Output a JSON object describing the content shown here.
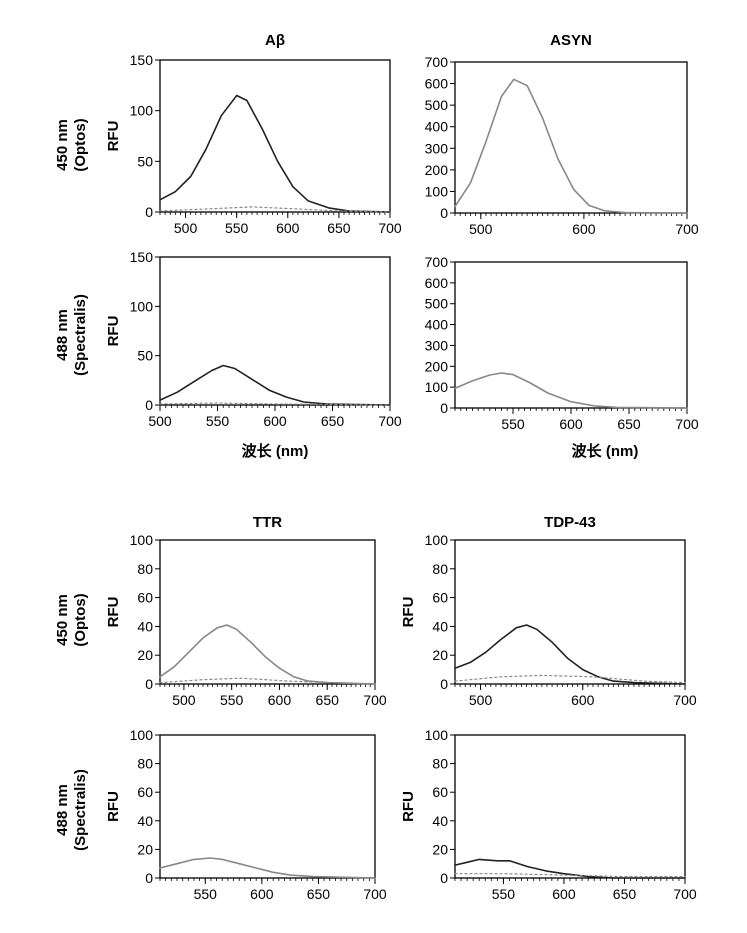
{
  "figure": {
    "row_labels": [
      {
        "line1": "450 nm",
        "line2": "(Optos)"
      },
      {
        "line1": "488 nm",
        "line2": "(Spectralis)"
      },
      {
        "line1": "450 nm",
        "line2": "(Optos)"
      },
      {
        "line1": "488 nm",
        "line2": "(Spectralis)"
      }
    ],
    "x_axis_title": "波长 (nm)",
    "y_axis_title": "RFU"
  },
  "chart_data": [
    {
      "type": "line",
      "title": "Aβ",
      "ylabel": "RFU",
      "xlabel": "",
      "xlim": [
        475,
        700
      ],
      "ylim": [
        0,
        150
      ],
      "xticks": [
        500,
        550,
        600,
        650,
        700
      ],
      "yticks": [
        0,
        50,
        100,
        150
      ],
      "series": [
        {
          "style": "solid",
          "color": "#222222",
          "points": [
            [
              475,
              12
            ],
            [
              490,
              20
            ],
            [
              505,
              35
            ],
            [
              520,
              62
            ],
            [
              535,
              95
            ],
            [
              550,
              115
            ],
            [
              560,
              110
            ],
            [
              575,
              82
            ],
            [
              590,
              50
            ],
            [
              605,
              25
            ],
            [
              620,
              11
            ],
            [
              640,
              4
            ],
            [
              660,
              1
            ],
            [
              700,
              0
            ]
          ]
        },
        {
          "style": "dotted",
          "color": "#888888",
          "points": [
            [
              475,
              1
            ],
            [
              520,
              3
            ],
            [
              565,
              5
            ],
            [
              610,
              3
            ],
            [
              650,
              1
            ],
            [
              700,
              0
            ]
          ]
        }
      ]
    },
    {
      "type": "line",
      "title": "ASYN",
      "ylabel": "",
      "xlabel": "",
      "xlim": [
        475,
        700
      ],
      "ylim": [
        0,
        700
      ],
      "xticks": [
        500,
        600,
        700
      ],
      "yticks": [
        0,
        100,
        200,
        300,
        400,
        500,
        600,
        700
      ],
      "series": [
        {
          "style": "solid",
          "color": "#888888",
          "points": [
            [
              475,
              30
            ],
            [
              490,
              140
            ],
            [
              505,
              330
            ],
            [
              520,
              540
            ],
            [
              532,
              620
            ],
            [
              545,
              590
            ],
            [
              560,
              440
            ],
            [
              575,
              250
            ],
            [
              590,
              110
            ],
            [
              605,
              35
            ],
            [
              620,
              10
            ],
            [
              640,
              2
            ],
            [
              700,
              0
            ]
          ]
        }
      ]
    },
    {
      "type": "line",
      "title": "",
      "ylabel": "RFU",
      "xlabel": "",
      "xlim": [
        500,
        700
      ],
      "ylim": [
        0,
        150
      ],
      "xticks": [
        500,
        550,
        600,
        650,
        700
      ],
      "yticks": [
        0,
        50,
        100,
        150
      ],
      "series": [
        {
          "style": "solid",
          "color": "#222222",
          "points": [
            [
              500,
              5
            ],
            [
              515,
              13
            ],
            [
              530,
              24
            ],
            [
              545,
              35
            ],
            [
              555,
              40
            ],
            [
              565,
              37
            ],
            [
              580,
              26
            ],
            [
              595,
              15
            ],
            [
              610,
              8
            ],
            [
              625,
              3
            ],
            [
              645,
              1
            ],
            [
              700,
              0
            ]
          ]
        },
        {
          "style": "dotted",
          "color": "#888888",
          "points": [
            [
              500,
              1
            ],
            [
              550,
              2
            ],
            [
              600,
              1
            ],
            [
              700,
              0
            ]
          ]
        }
      ]
    },
    {
      "type": "line",
      "title": "",
      "ylabel": "",
      "xlabel": "",
      "xlim": [
        500,
        700
      ],
      "ylim": [
        0,
        700
      ],
      "xticks": [
        550,
        600,
        650,
        700
      ],
      "yticks": [
        0,
        100,
        200,
        300,
        400,
        500,
        600,
        700
      ],
      "series": [
        {
          "style": "solid",
          "color": "#888888",
          "points": [
            [
              500,
              95
            ],
            [
              515,
              130
            ],
            [
              530,
              158
            ],
            [
              540,
              168
            ],
            [
              550,
              160
            ],
            [
              565,
              120
            ],
            [
              580,
              72
            ],
            [
              600,
              30
            ],
            [
              620,
              10
            ],
            [
              640,
              3
            ],
            [
              700,
              0
            ]
          ]
        }
      ]
    },
    {
      "type": "line",
      "title": "TTR",
      "ylabel": "RFU",
      "xlabel": "",
      "xlim": [
        475,
        700
      ],
      "ylim": [
        0,
        100
      ],
      "xticks": [
        500,
        550,
        600,
        650,
        700
      ],
      "yticks": [
        0,
        20,
        40,
        60,
        80,
        100
      ],
      "series": [
        {
          "style": "solid",
          "color": "#888888",
          "points": [
            [
              475,
              5
            ],
            [
              490,
              12
            ],
            [
              505,
              22
            ],
            [
              520,
              32
            ],
            [
              535,
              39
            ],
            [
              545,
              41
            ],
            [
              555,
              38
            ],
            [
              570,
              29
            ],
            [
              585,
              19
            ],
            [
              600,
              11
            ],
            [
              615,
              5
            ],
            [
              630,
              2
            ],
            [
              650,
              1
            ],
            [
              700,
              0
            ]
          ]
        },
        {
          "style": "dotted",
          "color": "#888888",
          "points": [
            [
              475,
              1
            ],
            [
              520,
              3
            ],
            [
              560,
              4
            ],
            [
              610,
              2
            ],
            [
              650,
              1
            ],
            [
              700,
              0
            ]
          ]
        }
      ]
    },
    {
      "type": "line",
      "title": "TDP-43",
      "ylabel": "RFU",
      "xlabel": "",
      "xlim": [
        475,
        700
      ],
      "ylim": [
        0,
        100
      ],
      "xticks": [
        500,
        600,
        700
      ],
      "yticks": [
        0,
        20,
        40,
        60,
        80,
        100
      ],
      "series": [
        {
          "style": "solid",
          "color": "#222222",
          "points": [
            [
              475,
              11
            ],
            [
              490,
              15
            ],
            [
              505,
              22
            ],
            [
              520,
              31
            ],
            [
              535,
              39
            ],
            [
              545,
              41
            ],
            [
              555,
              38
            ],
            [
              570,
              29
            ],
            [
              585,
              18
            ],
            [
              600,
              10
            ],
            [
              615,
              5
            ],
            [
              630,
              2
            ],
            [
              650,
              1
            ],
            [
              700,
              0
            ]
          ]
        },
        {
          "style": "dotted",
          "color": "#888888",
          "points": [
            [
              475,
              2
            ],
            [
              520,
              5
            ],
            [
              560,
              6
            ],
            [
              610,
              5
            ],
            [
              660,
              2
            ],
            [
              700,
              1
            ]
          ]
        }
      ]
    },
    {
      "type": "line",
      "title": "",
      "ylabel": "RFU",
      "xlabel": "",
      "xlim": [
        510,
        700
      ],
      "ylim": [
        0,
        100
      ],
      "xticks": [
        550,
        600,
        650,
        700
      ],
      "yticks": [
        0,
        20,
        40,
        60,
        80,
        100
      ],
      "series": [
        {
          "style": "solid",
          "color": "#888888",
          "points": [
            [
              510,
              7
            ],
            [
              525,
              10
            ],
            [
              540,
              13
            ],
            [
              555,
              14
            ],
            [
              565,
              13
            ],
            [
              580,
              10
            ],
            [
              595,
              7
            ],
            [
              610,
              4
            ],
            [
              625,
              2
            ],
            [
              645,
              1
            ],
            [
              700,
              0
            ]
          ]
        }
      ]
    },
    {
      "type": "line",
      "title": "",
      "ylabel": "RFU",
      "xlabel": "",
      "xlim": [
        510,
        700
      ],
      "ylim": [
        0,
        100
      ],
      "xticks": [
        550,
        600,
        650,
        700
      ],
      "yticks": [
        0,
        20,
        40,
        60,
        80,
        100
      ],
      "series": [
        {
          "style": "solid",
          "color": "#222222",
          "points": [
            [
              510,
              9
            ],
            [
              520,
              11
            ],
            [
              530,
              13
            ],
            [
              545,
              12
            ],
            [
              555,
              12
            ],
            [
              570,
              8
            ],
            [
              585,
              5
            ],
            [
              600,
              3
            ],
            [
              620,
              1
            ],
            [
              640,
              0
            ],
            [
              700,
              0
            ]
          ]
        },
        {
          "style": "dotted",
          "color": "#888888",
          "points": [
            [
              510,
              3
            ],
            [
              550,
              3
            ],
            [
              600,
              2
            ],
            [
              650,
              1
            ],
            [
              700,
              1
            ]
          ]
        }
      ]
    }
  ]
}
